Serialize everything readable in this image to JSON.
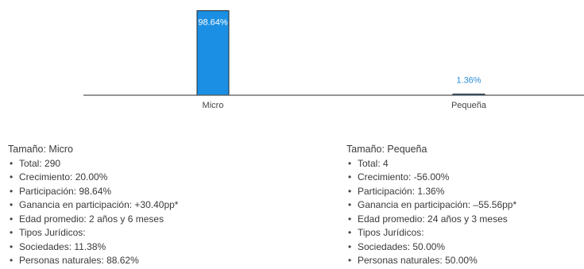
{
  "chart_data": {
    "type": "bar",
    "categories": [
      "Micro",
      "Pequeña"
    ],
    "values": [
      98.64,
      1.36
    ],
    "data_labels": [
      "98.64%",
      "1.36%"
    ],
    "ylim": [
      0,
      100
    ],
    "grid": false,
    "colors": {
      "bar": "#1a8fe3",
      "bar_outline": "#2a2a2a",
      "axis": "#555555"
    }
  },
  "panels": [
    {
      "title": "Tamaño: Micro",
      "items": [
        "Total: 290",
        "Crecimiento: 20.00%",
        "Participación: 98.64%",
        "Ganancia en participación: +30.40pp*",
        "Edad promedio: 2 años y 6 meses",
        "Tipos Jurídicos:",
        "Sociedades: 11.38%",
        "Personas naturales: 88.62%"
      ]
    },
    {
      "title": "Tamaño: Pequeña",
      "items": [
        "Total: 4",
        "Crecimiento: -56.00%",
        "Participación: 1.36%",
        "Ganancia en participación: –55.56pp*",
        "Edad promedio: 24 años y 3 meses",
        "Tipos Jurídicos:",
        "Sociedades: 50.00%",
        "Personas naturales: 50.00%"
      ]
    }
  ]
}
